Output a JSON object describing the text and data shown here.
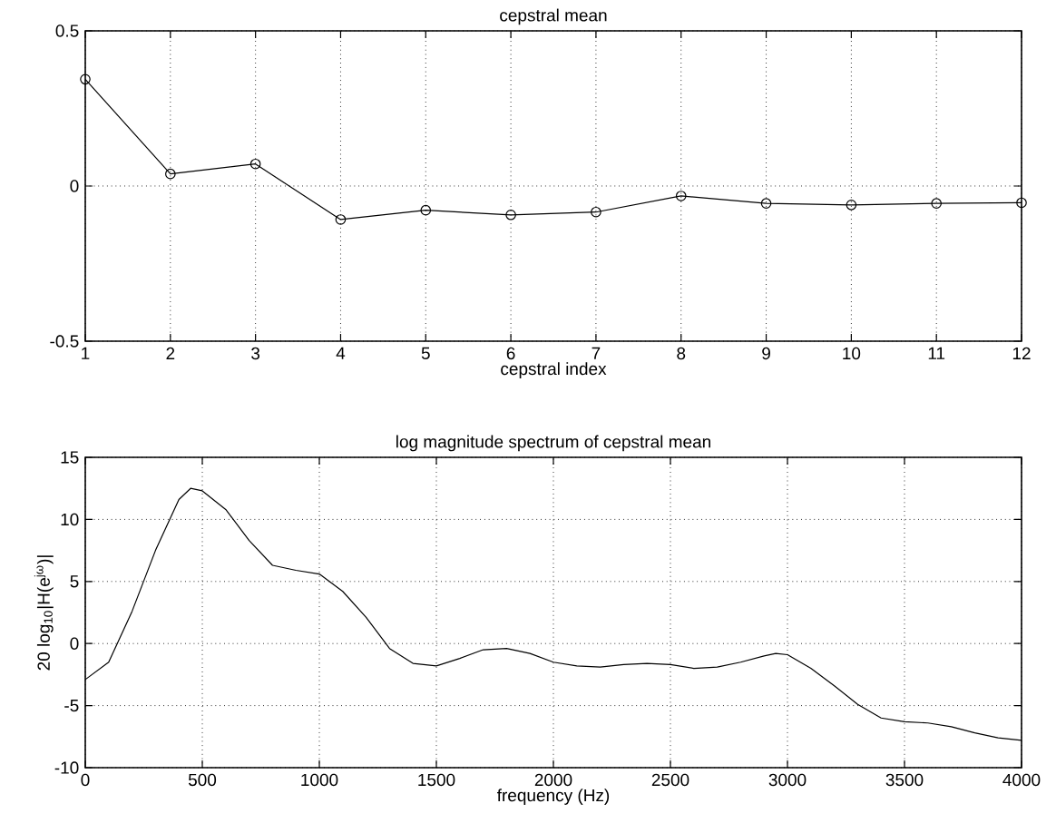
{
  "chart_data": [
    {
      "type": "line",
      "title": "cepstral mean",
      "xlabel": "cepstral index",
      "x": [
        1,
        2,
        3,
        4,
        5,
        6,
        7,
        8,
        9,
        10,
        11,
        12
      ],
      "xlim": [
        1,
        12
      ],
      "xticks": [
        1,
        2,
        3,
        4,
        5,
        6,
        7,
        8,
        9,
        10,
        11,
        12
      ],
      "ylim": [
        -0.5,
        0.5
      ],
      "yticks": [
        -0.5,
        0,
        0.5
      ],
      "grid": true,
      "marker": "circle",
      "line_style": "solid",
      "series": [
        {
          "color": "#000000",
          "values": [
            0.344,
            0.039,
            0.071,
            -0.108,
            -0.078,
            -0.093,
            -0.084,
            -0.032,
            -0.056,
            -0.061,
            -0.056,
            -0.054
          ]
        }
      ]
    },
    {
      "type": "line",
      "title": "log magnitude spectrum of cepstral mean",
      "xlabel": "frequency (Hz)",
      "ylabel": "20 log$_{10}$|H(e$^{jω}$)|",
      "xlim": [
        0,
        4000
      ],
      "xticks": [
        0,
        500,
        1000,
        1500,
        2000,
        2500,
        3000,
        3500,
        4000
      ],
      "ylim": [
        -10,
        15
      ],
      "yticks": [
        -10,
        -5,
        0,
        5,
        10,
        15
      ],
      "grid": true,
      "marker": "none",
      "line_style": "solid",
      "x": [
        0,
        100,
        200,
        300,
        400,
        450,
        500,
        600,
        700,
        800,
        900,
        1000,
        1100,
        1200,
        1300,
        1400,
        1500,
        1600,
        1700,
        1800,
        1900,
        2000,
        2100,
        2200,
        2300,
        2400,
        2500,
        2600,
        2700,
        2800,
        2900,
        2950,
        3000,
        3100,
        3200,
        3300,
        3400,
        3500,
        3600,
        3700,
        3800,
        3900,
        4000
      ],
      "series": [
        {
          "color": "#000000",
          "values": [
            -2.9,
            -1.5,
            2.6,
            7.5,
            11.6,
            12.5,
            12.3,
            10.8,
            8.3,
            6.3,
            5.9,
            5.6,
            4.2,
            2.1,
            -0.4,
            -1.6,
            -1.8,
            -1.2,
            -0.5,
            -0.4,
            -0.8,
            -1.5,
            -1.8,
            -1.9,
            -1.7,
            -1.6,
            -1.7,
            -2.0,
            -1.9,
            -1.5,
            -1.0,
            -0.8,
            -0.9,
            -2.0,
            -3.4,
            -4.9,
            -6.0,
            -6.3,
            -6.4,
            -6.7,
            -7.2,
            -7.6,
            -7.8
          ]
        }
      ]
    }
  ]
}
